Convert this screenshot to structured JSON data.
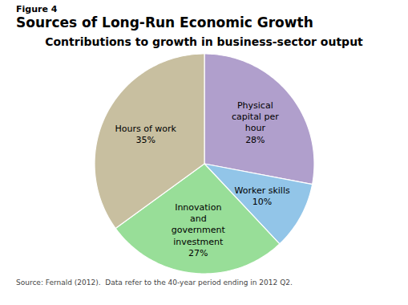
{
  "chart_data": {
    "type": "pie",
    "figure_label": "Figure 4",
    "title": "Sources of Long-Run Economic Growth",
    "subtitle": "Contributions to growth in business-sector output",
    "caption": "Source: Fernald (2012).  Data refer to the 40-year period ending in 2012 Q2.",
    "categories": [
      "Physical\ncapital per\nhour",
      "Worker skills",
      "Innovation\nand\ngovernment\ninvestment",
      "Hours of work"
    ],
    "values": [
      28,
      10,
      27,
      35
    ],
    "value_labels": [
      "28%",
      "10%",
      "27%",
      "35%"
    ],
    "colors": [
      "#b09fcc",
      "#92C5E8",
      "#98DE98",
      "#C8BFA0"
    ],
    "data_labels": true
  }
}
